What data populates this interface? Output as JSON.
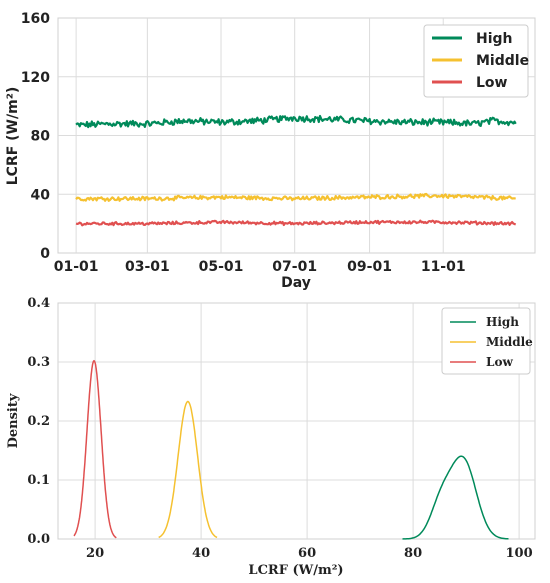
{
  "colors": {
    "High": "#008a5a",
    "Middle": "#f5c130",
    "Low": "#e05050"
  },
  "chart_data": [
    {
      "type": "line",
      "xlabel": "Day",
      "ylabel": "LCRF (W/m²)",
      "ylim": [
        0,
        160
      ],
      "yticks": [
        0,
        40,
        80,
        120,
        160
      ],
      "xticks": [
        "01-01",
        "03-01",
        "05-01",
        "07-01",
        "09-01",
        "11-01"
      ],
      "xtick_days": [
        0,
        59,
        120,
        181,
        243,
        304
      ],
      "n_days": 365,
      "grid": true,
      "legend": "top-right",
      "series": [
        {
          "name": "High",
          "mean": 89.5,
          "noise": 2.0,
          "anchors": [
            [
              0,
              87
            ],
            [
              30,
              88
            ],
            [
              60,
              88
            ],
            [
              90,
              90
            ],
            [
              120,
              89
            ],
            [
              150,
              90
            ],
            [
              180,
              92
            ],
            [
              210,
              91
            ],
            [
              240,
              90
            ],
            [
              270,
              89
            ],
            [
              300,
              89
            ],
            [
              330,
              88
            ],
            [
              345,
              90
            ],
            [
              364,
              89
            ]
          ]
        },
        {
          "name": "Middle",
          "mean": 37.5,
          "noise": 1.2,
          "anchors": [
            [
              0,
              37
            ],
            [
              60,
              37
            ],
            [
              120,
              38
            ],
            [
              180,
              37
            ],
            [
              240,
              38
            ],
            [
              300,
              39
            ],
            [
              364,
              37
            ]
          ]
        },
        {
          "name": "Low",
          "mean": 20.5,
          "noise": 0.9,
          "anchors": [
            [
              0,
              20
            ],
            [
              60,
              20
            ],
            [
              120,
              21
            ],
            [
              180,
              20
            ],
            [
              240,
              21
            ],
            [
              300,
              21
            ],
            [
              364,
              20
            ]
          ]
        }
      ]
    },
    {
      "type": "line",
      "subtype": "density",
      "xlabel": "LCRF (W/m²)",
      "ylabel": "Density",
      "xlim": [
        13,
        103
      ],
      "ylim": [
        0,
        0.4
      ],
      "xticks": [
        20,
        40,
        60,
        80,
        100
      ],
      "yticks": [
        0.0,
        0.1,
        0.2,
        0.3,
        0.4
      ],
      "grid": true,
      "legend": "top-right",
      "series": [
        {
          "name": "High",
          "peak_x": 89.5,
          "peak_y": 0.135,
          "range": [
            78,
            98
          ]
        },
        {
          "name": "Middle",
          "peak_x": 37.5,
          "peak_y": 0.233,
          "range": [
            32,
            43
          ]
        },
        {
          "name": "Low",
          "peak_x": 19.8,
          "peak_y": 0.302,
          "range": [
            16,
            24
          ]
        }
      ]
    }
  ]
}
